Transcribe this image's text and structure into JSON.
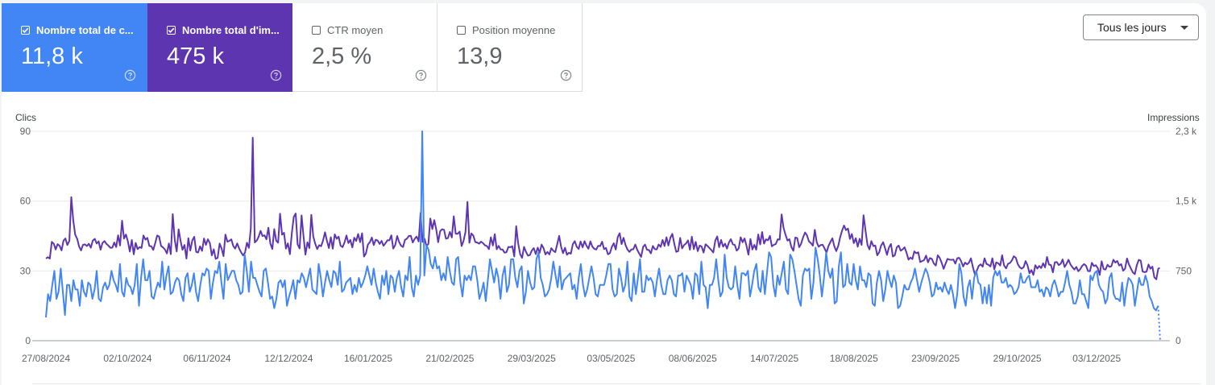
{
  "metrics": [
    {
      "label": "Nombre total de c...",
      "value": "11,8 k",
      "checked": true,
      "color": "#4285f4"
    },
    {
      "label": "Nombre total d'im...",
      "value": "475 k",
      "checked": true,
      "color": "#5e35b1"
    },
    {
      "label": "CTR moyen",
      "value": "2,5 %",
      "checked": false
    },
    {
      "label": "Position moyenne",
      "value": "13,9",
      "checked": false
    }
  ],
  "range_selector": {
    "label": "Tous les jours"
  },
  "chart_data": {
    "type": "line",
    "left_axis": {
      "title": "Clics",
      "ticks": [
        "90",
        "60",
        "30",
        "0"
      ],
      "range": [
        0,
        90
      ]
    },
    "right_axis": {
      "title": "Impressions",
      "ticks": [
        "2,3 k",
        "1,5 k",
        "750",
        "0"
      ],
      "range": [
        0,
        2300
      ]
    },
    "x_ticks": [
      "27/08/2024",
      "02/10/2024",
      "06/11/2024",
      "12/12/2024",
      "16/01/2025",
      "21/02/2025",
      "29/03/2025",
      "03/05/2025",
      "08/06/2025",
      "14/07/2025",
      "18/08/2025",
      "23/09/2025",
      "29/10/2025",
      "03/12/2025"
    ],
    "start_date": "2024-08-27",
    "end_date": "2025-12-31",
    "grid": true,
    "series": [
      {
        "axis": "left",
        "color": "#4285f4",
        "values": [
          10,
          20,
          17,
          24,
          30,
          18,
          21,
          31,
          21,
          11,
          24,
          24,
          17,
          26,
          22,
          22,
          15,
          26,
          21,
          19,
          25,
          24,
          18,
          22,
          30,
          18,
          17,
          23,
          25,
          22,
          24,
          30,
          26,
          24,
          21,
          33,
          21,
          19,
          27,
          24,
          23,
          20,
          24,
          33,
          15,
          27,
          35,
          26,
          26,
          30,
          19,
          18,
          22,
          25,
          23,
          34,
          22,
          28,
          32,
          20,
          21,
          25,
          27,
          26,
          20,
          17,
          27,
          29,
          21,
          24,
          29,
          21,
          17,
          24,
          29,
          28,
          31,
          30,
          18,
          25,
          30,
          29,
          34,
          25,
          18,
          33,
          26,
          28,
          30,
          30,
          26,
          24,
          20,
          21,
          37,
          30,
          21,
          34,
          27,
          27,
          24,
          21,
          19,
          30,
          31,
          25,
          18,
          19,
          14,
          18,
          25,
          26,
          23,
          26,
          15,
          19,
          22,
          26,
          18,
          26,
          25,
          29,
          27,
          23,
          27,
          31,
          22,
          21,
          20,
          33,
          27,
          19,
          25,
          30,
          26,
          23,
          30,
          29,
          24,
          34,
          21,
          22,
          25,
          26,
          27,
          20,
          24,
          21,
          27,
          23,
          25,
          28,
          32,
          28,
          24,
          31,
          25,
          21,
          18,
          28,
          24,
          30,
          20,
          28,
          27,
          21,
          27,
          30,
          23,
          19,
          28,
          26,
          36,
          23,
          19,
          28,
          24,
          28,
          90,
          28,
          41,
          39,
          33,
          31,
          36,
          31,
          32,
          26,
          29,
          26,
          36,
          30,
          25,
          24,
          35,
          36,
          25,
          19,
          28,
          26,
          28,
          26,
          32,
          32,
          26,
          18,
          21,
          25,
          17,
          26,
          35,
          30,
          25,
          31,
          27,
          18,
          28,
          32,
          21,
          24,
          35,
          35,
          27,
          23,
          30,
          32,
          16,
          21,
          30,
          25,
          22,
          23,
          35,
          38,
          27,
          24,
          19,
          20,
          22,
          27,
          34,
          28,
          23,
          32,
          22,
          26,
          27,
          28,
          29,
          22,
          24,
          18,
          27,
          33,
          24,
          19,
          22,
          27,
          32,
          27,
          20,
          19,
          24,
          24,
          24,
          28,
          33,
          33,
          22,
          19,
          20,
          31,
          27,
          21,
          24,
          34,
          19,
          17,
          29,
          20,
          27,
          35,
          21,
          21,
          28,
          26,
          27,
          25,
          19,
          26,
          31,
          24,
          20,
          20,
          26,
          28,
          26,
          20,
          19,
          28,
          28,
          29,
          21,
          28,
          26,
          24,
          18,
          29,
          28,
          20,
          34,
          24,
          23,
          14,
          24,
          24,
          27,
          35,
          26,
          19,
          21,
          37,
          27,
          23,
          22,
          23,
          32,
          24,
          18,
          29,
          29,
          28,
          30,
          19,
          24,
          30,
          33,
          23,
          21,
          30,
          20,
          29,
          38,
          36,
          24,
          19,
          28,
          24,
          29,
          34,
          22,
          20,
          37,
          35,
          30,
          24,
          18,
          15,
          28,
          31,
          30,
          31,
          18,
          25,
          40,
          35,
          28,
          19,
          27,
          38,
          30,
          27,
          31,
          16,
          17,
          32,
          38,
          23,
          24,
          33,
          25,
          24,
          33,
          26,
          22,
          32,
          26,
          26,
          23,
          29,
          28,
          16,
          15,
          25,
          30,
          26,
          17,
          22,
          30,
          26,
          23,
          28,
          25,
          14,
          15,
          19,
          24,
          22,
          22,
          25,
          27,
          31,
          26,
          21,
          25,
          28,
          31,
          29,
          25,
          19,
          20,
          25,
          22,
          23,
          21,
          25,
          22,
          20,
          24,
          20,
          14,
          20,
          33,
          29,
          19,
          15,
          23,
          26,
          18,
          27,
          30,
          25,
          24,
          16,
          23,
          16,
          24,
          15,
          27,
          30,
          28,
          30,
          25,
          25,
          27,
          23,
          24,
          23,
          20,
          21,
          23,
          29,
          25,
          25,
          27,
          28,
          23,
          23,
          23,
          26,
          21,
          22,
          19,
          23,
          22,
          19,
          24,
          26,
          23,
          19,
          21,
          21,
          25,
          30,
          24,
          21,
          16,
          16,
          19,
          26,
          20,
          20,
          17,
          14,
          28,
          26,
          29,
          30,
          24,
          22,
          21,
          16,
          18,
          27,
          29,
          20,
          18,
          18,
          17,
          25,
          15,
          22,
          27,
          26,
          24,
          15,
          21,
          27,
          24,
          24,
          28,
          25,
          19,
          17,
          14,
          13,
          15,
          0
        ]
      },
      {
        "axis": "right",
        "color": "#5e35b1",
        "values": [
          903,
          917,
          902,
          1085,
          1066,
          1002,
          1061,
          1041,
          992,
          1099,
          1123,
          1051,
          1098,
          1577,
          1323,
          1165,
          1119,
          1034,
          992,
          1053,
          1058,
          1039,
          1064,
          1021,
          1098,
          1119,
          1067,
          1092,
          1000,
          1073,
          1094,
          1063,
          1045,
          1021,
          1022,
          1078,
          1029,
          1158,
          1046,
          1318,
          1122,
          1166,
          1092,
          979,
          1106,
          948,
          1074,
          1006,
          1028,
          1019,
          1155,
          1110,
          1130,
          1039,
          1038,
          997,
          1070,
          1155,
          1143,
          1041,
          1024,
          1002,
          958,
          1069,
          950,
          1390,
          1107,
          980,
          1223,
          1096,
          999,
          1051,
          902,
          1126,
          990,
          1103,
          1141,
          975,
          969,
          1037,
          986,
          1123,
          1052,
          1114,
          1072,
          937,
          1004,
          899,
          910,
          1067,
          1013,
          929,
          1165,
          1087,
          1097,
          1113,
          1041,
          1012,
          1069,
          1013,
          971,
          937,
          968,
          1077,
          1019,
          1233,
          2229,
          1079,
          1099,
          1141,
          1207,
          1150,
          1157,
          1114,
          1241,
          1069,
          1007,
          1225,
          1099,
          1077,
          1395,
          1164,
          1185,
          1012,
          1069,
          950,
          1180,
          1359,
          1397,
          1058,
          1014,
          1376,
          1148,
          946,
          1081,
          1017,
          1383,
          1146,
          1066,
          1007,
          1049,
          1037,
          1099,
          1191,
          1096,
          1017,
          1137,
          1010,
          1168,
          1120,
          1143,
          1045,
          1028,
          1079,
          1155,
          1072,
          1107,
          1024,
          1131,
          1095,
          1172,
          1082,
          1180,
          924,
          960,
          1056,
          1082,
          1133,
          1051,
          1108,
          1100,
          1062,
          1096,
          1043,
          1070,
          1103,
          1102,
          1157,
          1012,
          1050,
          1150,
          1084,
          1043,
          1029,
          1108,
          1121,
          1151,
          1152,
          1078,
          1121,
          1144,
          1090,
          1404,
          1085,
          1120,
          1040,
          1063,
          1343,
          1226,
          1324,
          1224,
          1082,
          1201,
          1224,
          1218,
          1121,
          1126,
          1194,
          1134,
          1367,
          1175,
          1175,
          1199,
          1039,
          1095,
          1193,
          1525,
          1076,
          1178,
          1155,
          1084,
          1078,
          1066,
          1088,
          1071,
          1047,
          1039,
          1005,
          1136,
          1046,
          1170,
          1004,
          1041,
          1003,
          1001,
          967,
          972,
          1030,
          1027,
          1038,
          925,
          1258,
          1070,
          950,
          910,
          1031,
          976,
          934,
          941,
          991,
          1017,
          951,
          1022,
          965,
          1055,
          1016,
          947,
          975,
          947,
          1016,
          988,
          972,
          1061,
          1151,
          1032,
          961,
          1021,
          944,
          966,
          955,
          1061,
          1093,
          1032,
          1008,
          1090,
          1025,
          1093,
          1044,
          1010,
          1091,
          1033,
          1009,
          1001,
          1042,
          1039,
          1087,
          1007,
          1018,
          949,
          962,
          1030,
          1070,
          1001,
          1137,
          1180,
          1061,
          1130,
          1051,
          1001,
          976,
          1001,
          1004,
          1056,
          999,
          958,
          920,
          1031,
          1055,
          999,
          996,
          959,
          1040,
          1006,
          1002,
          1057,
          1031,
          1107,
          1040,
          1136,
          1046,
          1132,
          1173,
          1065,
          976,
          984,
          1129,
          1014,
          1050,
          1067,
          1101,
          1000,
          1142,
          1005,
          1085,
          984,
          1045,
          1035,
          968,
          1059,
          1041,
          1018,
          996,
          969,
          1100,
          1146,
          1027,
          1107,
          1033,
          1066,
          1011,
          1078,
          1115,
          1058,
          1052,
          989,
          1013,
          1136,
          1081,
          1123,
          1044,
          945,
          1117,
          1002,
          1053,
          1000,
          1167,
          1057,
          1193,
          1067,
          1113,
          1103,
          1151,
          1037,
          1053,
          1062,
          1114,
          1110,
          1387,
          1239,
          1162,
          1100,
          1115,
          1029,
          987,
          1133,
          1127,
          1027,
          1065,
          1137,
          1188,
          1157,
          1091,
          1072,
          1044,
          1217,
          1081,
          1032,
          1051,
          1054,
          1015,
          967,
          1039,
          1084,
          1124,
          1038,
          985,
          1041,
          1138,
          1210,
          1265,
          1215,
          1231,
          1117,
          1172,
          1071,
          1125,
          1032,
          1120,
          1052,
          1377,
          1206,
          1052,
          1003,
          1094,
          1039,
          1045,
          938,
          971,
          1045,
          1082,
          1016,
          943,
          1024,
          1062,
          924,
          939,
          1024,
          1045,
          988,
          1003,
          1026,
          968,
          891,
          913,
          897,
          981,
          961,
          970,
          864,
          875,
          885,
          935,
          861,
          908,
          899,
          848,
          825,
          938,
          909,
          857,
          789,
          846,
          899,
          891,
          887,
          892,
          847,
          906,
          910,
          873,
          815,
          858,
          839,
          857,
          905,
          808,
          731,
          767,
          821,
          839,
          813,
          905,
          843,
          833,
          815,
          906,
          784,
          860,
          850,
          825,
          939,
          826,
          794,
          845,
          854,
          882,
          927,
          911,
          842,
          807,
          792,
          807,
          874,
          829,
          741,
          776,
          723,
          829,
          792,
          821,
          798,
          850,
          806,
          920,
          837,
          831,
          751,
          861,
          864,
          830,
          846,
          893,
          809,
          844,
          889,
          838,
          808,
          782,
          810,
          763,
          785,
          821,
          841,
          823,
          765,
          763,
          855,
          820,
          829,
          798,
          723,
          872,
          786,
          782,
          834,
          811,
          818,
          889,
          858,
          876,
          826,
          840,
          769,
          791,
          903,
          837,
          791,
          749,
          732,
          828,
          887,
          879,
          759,
          753,
          758,
          837,
          791,
          813,
          696,
          674,
          794,
          799
        ]
      }
    ]
  }
}
